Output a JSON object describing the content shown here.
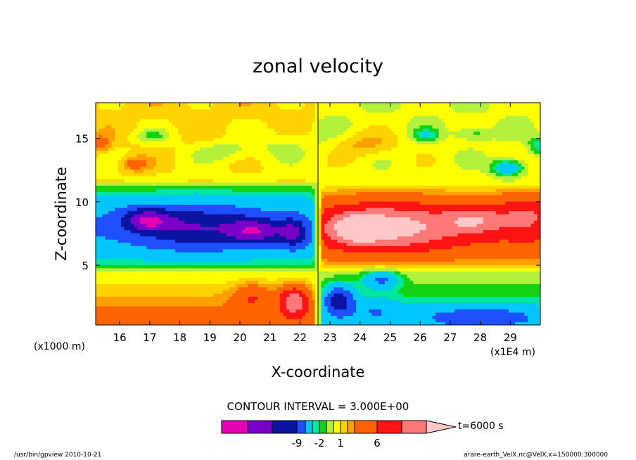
{
  "chart_data": {
    "type": "heatmap",
    "title": "zonal velocity",
    "xlabel": "X-coordinate",
    "ylabel": "Z-coordinate",
    "x_unit_label": "(x1E4 m)",
    "y_unit_label": "(x1000 m)",
    "xlim": [
      15.2,
      30.0
    ],
    "ylim": [
      0.3,
      17.8
    ],
    "x_ticks": [
      "16",
      "17",
      "18",
      "19",
      "20",
      "21",
      "22",
      "23",
      "24",
      "25",
      "26",
      "27",
      "28",
      "29"
    ],
    "y_ticks": [
      "5",
      "10",
      "15"
    ],
    "contour_interval_text": "CONTOUR INTERVAL = 3.000E+00",
    "legend_time": "t=6000 s",
    "legend_ticks": [
      {
        "label": "-9",
        "value": -9
      },
      {
        "label": "-2",
        "value": -2
      },
      {
        "label": "1",
        "value": 1
      },
      {
        "label": "6",
        "value": 6
      }
    ],
    "levels": [
      -15,
      -12,
      -9,
      -6,
      -3,
      -2,
      -1,
      0,
      1,
      2,
      3,
      6,
      9,
      12,
      15
    ],
    "colors": [
      "#e600b4",
      "#7a00c8",
      "#0a14a0",
      "#1e50ff",
      "#00c8ff",
      "#00e6a0",
      "#14d214",
      "#b4f03c",
      "#ffff00",
      "#ffd200",
      "#ffa000",
      "#ff6400",
      "#ff1414",
      "#ff7878",
      "#ffc8c8"
    ],
    "features": [
      {
        "x": 16.9,
        "z": 8.6,
        "amp": -8,
        "sx": 0.8,
        "sz": 0.9
      },
      {
        "x": 18.5,
        "z": 8.0,
        "amp": -6,
        "sx": 1.8,
        "sz": 1.7
      },
      {
        "x": 20.5,
        "z": 7.7,
        "amp": -8,
        "sx": 0.9,
        "sz": 1.0
      },
      {
        "x": 21.8,
        "z": 7.6,
        "amp": -7,
        "sx": 0.5,
        "sz": 1.2
      },
      {
        "x": 25.0,
        "z": 8.0,
        "amp": 8,
        "sx": 2.0,
        "sz": 1.7
      },
      {
        "x": 23.9,
        "z": 7.9,
        "amp": 8,
        "sx": 0.7,
        "sz": 1.0
      },
      {
        "x": 27.8,
        "z": 8.6,
        "amp": 6,
        "sx": 1.0,
        "sz": 1.0
      },
      {
        "x": 29.5,
        "z": 9.0,
        "amp": 4,
        "sx": 0.8,
        "sz": 1.5
      },
      {
        "x": 21.8,
        "z": 2.2,
        "amp": 9,
        "sx": 0.5,
        "sz": 1.2
      },
      {
        "x": 20.4,
        "z": 2.5,
        "amp": 4,
        "sx": 0.6,
        "sz": 1.1
      },
      {
        "x": 23.3,
        "z": 2.3,
        "amp": -9,
        "sx": 0.5,
        "sz": 1.2
      },
      {
        "x": 24.7,
        "z": 3.9,
        "amp": -6,
        "sx": 0.6,
        "sz": 0.7
      },
      {
        "x": 24.5,
        "z": 1.5,
        "amp": -3,
        "sx": 0.8,
        "sz": 1.0
      },
      {
        "x": 28.0,
        "z": 1.0,
        "amp": -5,
        "sx": 2.0,
        "sz": 0.8
      },
      {
        "x": 16.5,
        "z": 13.0,
        "amp": 3,
        "sx": 0.5,
        "sz": 0.6
      },
      {
        "x": 15.3,
        "z": 14.6,
        "amp": 3,
        "sx": 0.4,
        "sz": 0.7
      },
      {
        "x": 28.9,
        "z": 12.7,
        "amp": -6,
        "sx": 0.5,
        "sz": 0.6
      },
      {
        "x": 29.9,
        "z": 14.5,
        "amp": -3,
        "sx": 0.3,
        "sz": 0.7
      },
      {
        "x": 17.1,
        "z": 15.2,
        "amp": -2,
        "sx": 0.6,
        "sz": 0.5
      },
      {
        "x": 26.2,
        "z": 15.3,
        "amp": -3,
        "sx": 0.4,
        "sz": 0.5
      },
      {
        "x": 27.8,
        "z": 15.4,
        "amp": -2,
        "sx": 0.6,
        "sz": 0.5
      },
      {
        "x": 24.2,
        "z": 14.5,
        "amp": 2,
        "sx": 1.0,
        "sz": 1.0
      },
      {
        "x": 19.5,
        "z": 14.0,
        "amp": -1.5,
        "sx": 1.0,
        "sz": 0.8
      },
      {
        "x": 21.5,
        "z": 14.5,
        "amp": -1.2,
        "sx": 1.2,
        "sz": 1.2
      }
    ],
    "footer_left": "/usr/bin/gpview   2010-10-21",
    "footer_right": "arare-earth_VelX.nc@VelX,x=150000:300000"
  }
}
